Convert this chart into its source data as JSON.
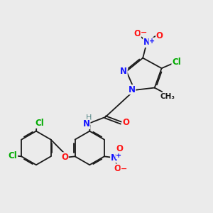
{
  "background_color": "#ebebeb",
  "bond_color": "#1a1a1a",
  "colors": {
    "N": "#1414ff",
    "O": "#ff1414",
    "Cl": "#00aa00",
    "C": "#1a1a1a",
    "H": "#5a8a8a"
  },
  "figsize": [
    3.0,
    3.0
  ],
  "dpi": 100
}
